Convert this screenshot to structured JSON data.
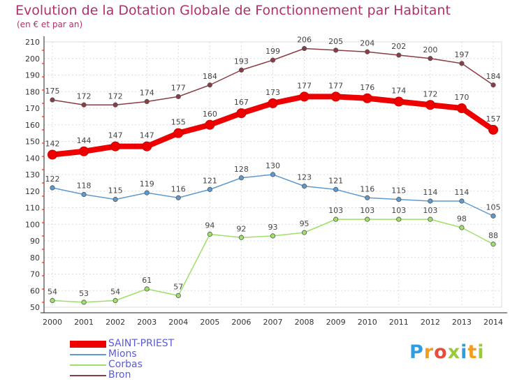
{
  "title": "Evolution de la Dotation Globale de Fonctionnement par Habitant",
  "subtitle": "(en € et par an)",
  "logo": {
    "letters": [
      "P",
      "r",
      "o",
      "x",
      "i",
      "t",
      "i"
    ],
    "colors": [
      "#2f9ee0",
      "#f39c1e",
      "#e84c3d",
      "#9bc93c",
      "#2f9ee0",
      "#f39c1e",
      "#9bc93c"
    ]
  },
  "chart_data": {
    "type": "line",
    "x": [
      "2000",
      "2001",
      "2002",
      "2003",
      "2004",
      "2005",
      "2006",
      "2007",
      "2008",
      "2009",
      "2010",
      "2011",
      "2012",
      "2013",
      "2014"
    ],
    "ylim": [
      50,
      210
    ],
    "yticks": [
      50,
      60,
      70,
      80,
      90,
      100,
      110,
      120,
      130,
      140,
      150,
      160,
      170,
      180,
      190,
      200,
      210
    ],
    "grid": true,
    "legend_position": "bottom-left",
    "series": [
      {
        "name": "SAINT-PRIEST",
        "color": "#ee0000",
        "emphasis": true,
        "values": [
          142,
          144,
          147,
          147,
          155,
          160,
          167,
          173,
          177,
          177,
          176,
          174,
          172,
          170,
          157
        ]
      },
      {
        "name": "Mions",
        "color": "#5d9acf",
        "emphasis": false,
        "values": [
          122,
          118,
          115,
          119,
          116,
          121,
          128,
          130,
          123,
          121,
          116,
          115,
          114,
          114,
          105
        ]
      },
      {
        "name": "Corbas",
        "color": "#9ee06a",
        "emphasis": false,
        "values": [
          54,
          53,
          54,
          61,
          57,
          94,
          92,
          93,
          95,
          103,
          103,
          103,
          103,
          98,
          88
        ]
      },
      {
        "name": "Bron",
        "color": "#8a3d43",
        "emphasis": false,
        "values": [
          175,
          172,
          172,
          174,
          177,
          184,
          193,
          199,
          206,
          205,
          204,
          202,
          200,
          197,
          184
        ]
      }
    ]
  }
}
